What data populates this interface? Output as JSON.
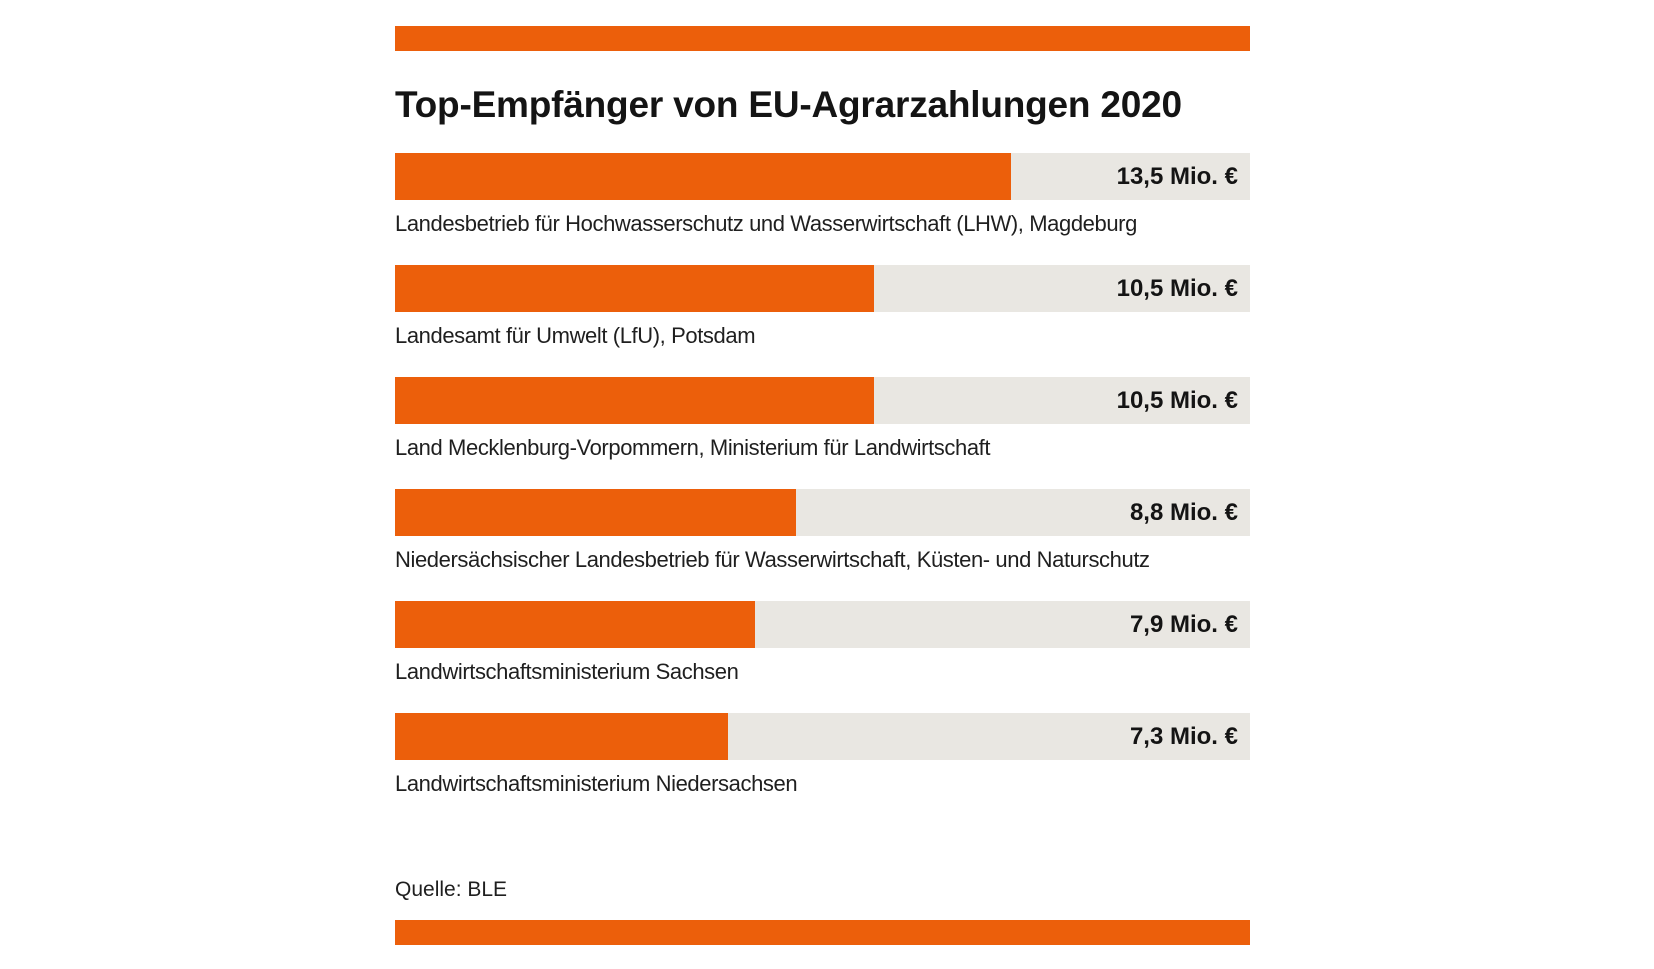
{
  "chart_data": {
    "type": "bar",
    "orientation": "horizontal",
    "title": "Top-Empfänger von EU-Agrarzahlungen 2020",
    "categories": [
      "Landesbetrieb für Hochwasserschutz und Wasserwirtschaft (LHW), Magdeburg",
      "Landesamt für Umwelt (LfU), Potsdam",
      "Land Mecklenburg-Vorpommern, Ministerium für Landwirtschaft",
      "Niedersächsischer Landesbetrieb für Wasserwirtschaft, Küsten- und Naturschutz",
      "Landwirtschaftsministerium Sachsen",
      "Landwirtschaftsministerium Niedersachsen"
    ],
    "values": [
      13.5,
      10.5,
      10.5,
      8.8,
      7.9,
      7.3
    ],
    "value_labels": [
      "13,5 Mio. €",
      "10,5 Mio. €",
      "10,5 Mio. €",
      "8,8 Mio. €",
      "7,9 Mio. €",
      "7,3 Mio. €"
    ],
    "unit": "Mio. €",
    "xlim": [
      0,
      18.75
    ],
    "grid": false,
    "source": "Quelle: BLE",
    "colors": {
      "bar": "#ec5f0b",
      "track": "#e9e7e2",
      "rule": "#ec5f0b"
    }
  }
}
